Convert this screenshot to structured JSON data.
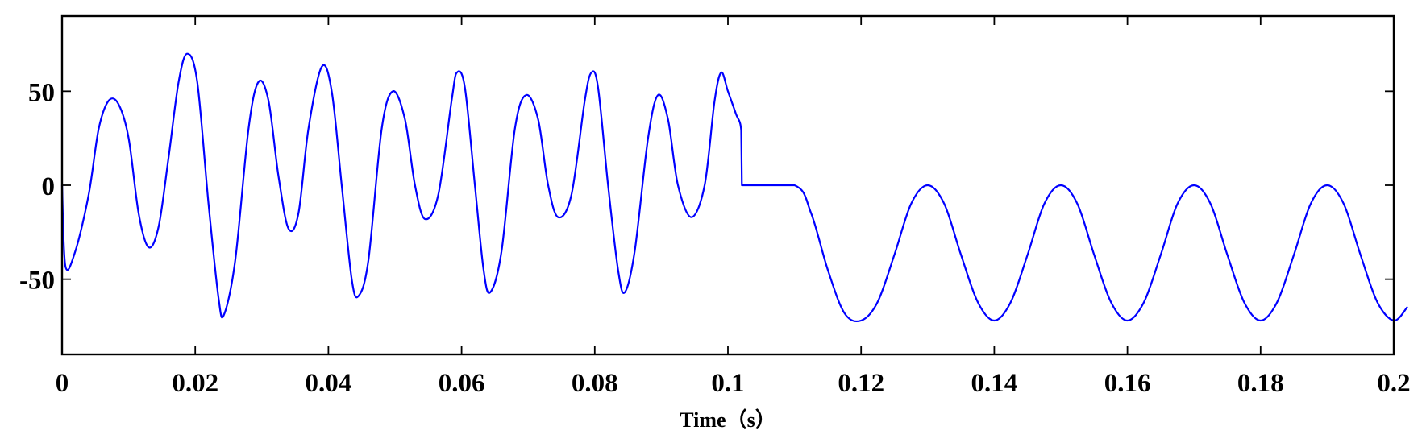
{
  "chart_data": {
    "type": "line",
    "title": "",
    "xlabel": "Time（s）",
    "ylabel": "",
    "xlim": [
      0,
      0.2
    ],
    "ylim": [
      -90,
      90
    ],
    "grid": false,
    "legend": "none",
    "x_ticks": [
      {
        "value": 0,
        "label": "0"
      },
      {
        "value": 0.02,
        "label": "0.02"
      },
      {
        "value": 0.04,
        "label": "0.04"
      },
      {
        "value": 0.06,
        "label": "0.06"
      },
      {
        "value": 0.08,
        "label": "0.08"
      },
      {
        "value": 0.1,
        "label": "0.1"
      },
      {
        "value": 0.12,
        "label": "0.12"
      },
      {
        "value": 0.14,
        "label": "0.14"
      },
      {
        "value": 0.16,
        "label": "0.16"
      },
      {
        "value": 0.18,
        "label": "0.18"
      },
      {
        "value": 0.2,
        "label": "0.2"
      }
    ],
    "y_ticks": [
      {
        "value": 50,
        "label": "50"
      },
      {
        "value": 0,
        "label": "0"
      },
      {
        "value": -50,
        "label": "-50"
      }
    ],
    "series": [
      {
        "color": "#0000ff",
        "points": [
          [
            0,
            0
          ],
          [
            0.0005,
            -43
          ],
          [
            0.002,
            -35
          ],
          [
            0.004,
            -5
          ],
          [
            0.0055,
            30
          ],
          [
            0.007,
            45
          ],
          [
            0.0085,
            43
          ],
          [
            0.01,
            25
          ],
          [
            0.0115,
            -15
          ],
          [
            0.013,
            -33
          ],
          [
            0.0145,
            -22
          ],
          [
            0.016,
            15
          ],
          [
            0.0175,
            55
          ],
          [
            0.0188,
            70
          ],
          [
            0.0203,
            55
          ],
          [
            0.022,
            -10
          ],
          [
            0.0235,
            -60
          ],
          [
            0.0243,
            -69
          ],
          [
            0.026,
            -40
          ],
          [
            0.028,
            30
          ],
          [
            0.0295,
            55
          ],
          [
            0.031,
            45
          ],
          [
            0.0325,
            5
          ],
          [
            0.034,
            -23
          ],
          [
            0.0355,
            -15
          ],
          [
            0.037,
            30
          ],
          [
            0.039,
            63
          ],
          [
            0.0405,
            50
          ],
          [
            0.042,
            0
          ],
          [
            0.0435,
            -50
          ],
          [
            0.0445,
            -59
          ],
          [
            0.046,
            -40
          ],
          [
            0.048,
            30
          ],
          [
            0.0497,
            50
          ],
          [
            0.0515,
            35
          ],
          [
            0.053,
            0
          ],
          [
            0.0545,
            -18
          ],
          [
            0.0565,
            -5
          ],
          [
            0.0585,
            45
          ],
          [
            0.0593,
            60
          ],
          [
            0.0605,
            52
          ],
          [
            0.062,
            0
          ],
          [
            0.0633,
            -45
          ],
          [
            0.0643,
            -57
          ],
          [
            0.066,
            -35
          ],
          [
            0.068,
            30
          ],
          [
            0.0697,
            48
          ],
          [
            0.0715,
            35
          ],
          [
            0.073,
            0
          ],
          [
            0.0745,
            -17
          ],
          [
            0.0765,
            -5
          ],
          [
            0.0785,
            45
          ],
          [
            0.0795,
            60
          ],
          [
            0.0805,
            52
          ],
          [
            0.082,
            0
          ],
          [
            0.0835,
            -45
          ],
          [
            0.0845,
            -57
          ],
          [
            0.086,
            -35
          ],
          [
            0.088,
            25
          ],
          [
            0.0895,
            48
          ],
          [
            0.091,
            35
          ],
          [
            0.0925,
            0
          ],
          [
            0.0945,
            -17
          ],
          [
            0.0965,
            0
          ],
          [
            0.098,
            45
          ],
          [
            0.099,
            60
          ],
          [
            0.1,
            50
          ],
          [
            0.1012,
            38
          ],
          [
            0.102,
            29
          ],
          [
            0.1021,
            0
          ],
          [
            0.11,
            0
          ],
          [
            0.1125,
            -15
          ],
          [
            0.115,
            -45
          ],
          [
            0.1175,
            -68
          ],
          [
            0.12,
            -72
          ],
          [
            0.1225,
            -62
          ],
          [
            0.125,
            -37
          ],
          [
            0.1275,
            -10
          ],
          [
            0.13,
            0
          ],
          [
            0.1325,
            -10
          ],
          [
            0.135,
            -37
          ],
          [
            0.1375,
            -62
          ],
          [
            0.14,
            -72
          ],
          [
            0.1425,
            -62
          ],
          [
            0.145,
            -37
          ],
          [
            0.1475,
            -10
          ],
          [
            0.15,
            0
          ],
          [
            0.1525,
            -10
          ],
          [
            0.155,
            -37
          ],
          [
            0.1575,
            -62
          ],
          [
            0.16,
            -72
          ],
          [
            0.1625,
            -62
          ],
          [
            0.165,
            -37
          ],
          [
            0.1675,
            -10
          ],
          [
            0.17,
            0
          ],
          [
            0.1725,
            -10
          ],
          [
            0.175,
            -37
          ],
          [
            0.1775,
            -62
          ],
          [
            0.18,
            -72
          ],
          [
            0.1825,
            -62
          ],
          [
            0.185,
            -37
          ],
          [
            0.1875,
            -10
          ],
          [
            0.19,
            0
          ],
          [
            0.1925,
            -10
          ],
          [
            0.195,
            -37
          ],
          [
            0.1975,
            -62
          ],
          [
            0.2,
            -72
          ],
          [
            0.202,
            -65
          ]
        ]
      }
    ]
  }
}
